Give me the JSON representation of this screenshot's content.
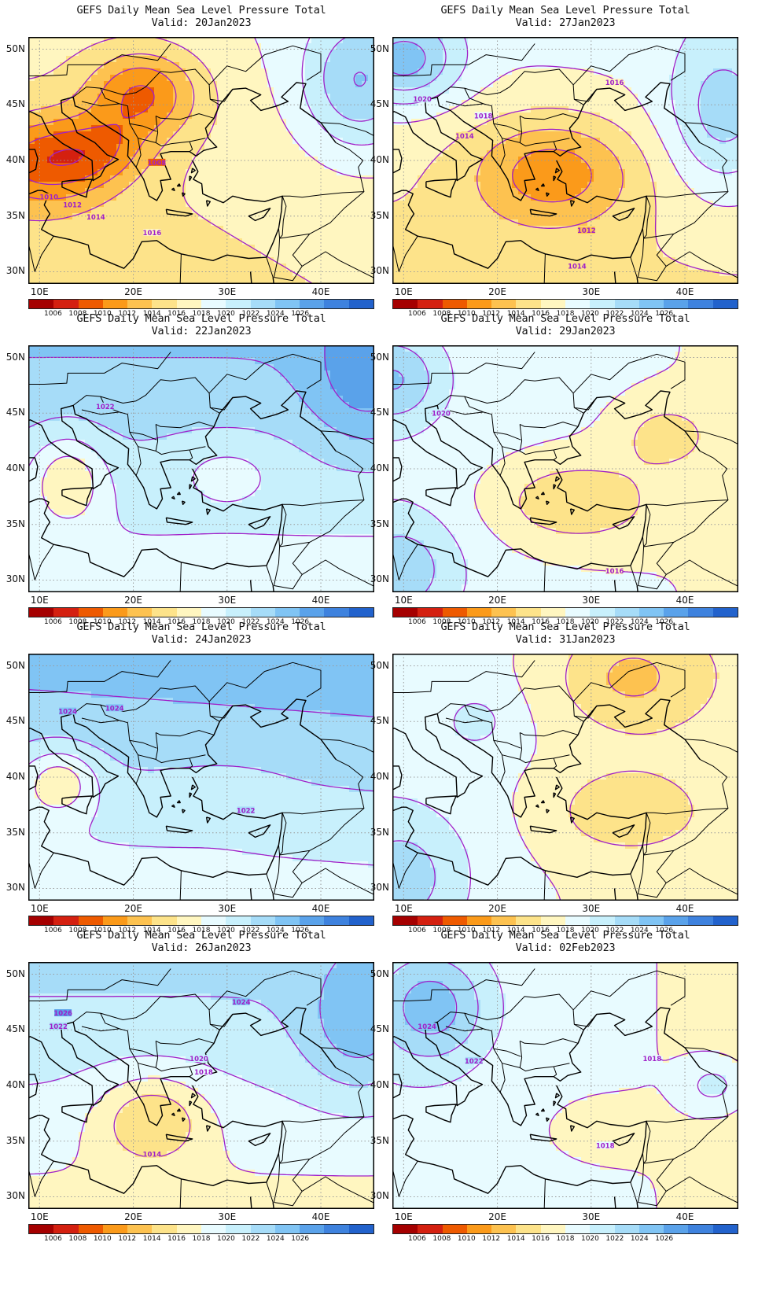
{
  "colors": {
    "scale": [
      "#a50000",
      "#d42010",
      "#ee5a00",
      "#fb9a1a",
      "#fdc250",
      "#fde38a",
      "#fff6c0",
      "#e8fbff",
      "#c8f0fc",
      "#a6dcf8",
      "#80c4f4",
      "#5aa2ea",
      "#3e82de",
      "#2262cc"
    ],
    "contour": "#a020c8",
    "coast": "#000000",
    "gridline": "#9a9a9a"
  },
  "axes": {
    "lat_labels": [
      "50N",
      "45N",
      "40N",
      "35N",
      "30N"
    ],
    "lat_values": [
      50,
      45,
      40,
      35,
      30
    ],
    "lon_labels": [
      "10E",
      "20E",
      "30E",
      "40E"
    ],
    "lon_values": [
      10,
      20,
      30,
      40
    ],
    "lon_range": [
      8.8,
      45.7
    ],
    "lat_range": [
      28.9,
      51.1
    ]
  },
  "colorbar": {
    "ticks": [
      "1006",
      "1008",
      "1010",
      "1012",
      "1014",
      "1016",
      "1018",
      "1020",
      "1022",
      "1024",
      "1026"
    ]
  },
  "panels": [
    {
      "title": "GEFS Daily Mean Sea Level Pressure Total",
      "valid": "Valid: 20Jan2023",
      "field": {
        "base": 1016.5,
        "gx": 0.05,
        "gy": 0.1,
        "bumps": [
          [
            21,
            46,
            -7,
            6,
            4
          ],
          [
            11,
            40,
            -7,
            7,
            4
          ],
          [
            17,
            41,
            -3,
            5,
            3
          ],
          [
            44,
            47,
            6,
            6,
            6
          ]
        ]
      },
      "labels": [
        {
          "t": "1008",
          "lon": 22.5,
          "lat": 39.8
        },
        {
          "t": "1010",
          "lon": 11,
          "lat": 36.7
        },
        {
          "t": "1012",
          "lon": 13.5,
          "lat": 36
        },
        {
          "t": "1014",
          "lon": 16,
          "lat": 34.9
        },
        {
          "t": "1016",
          "lon": 22,
          "lat": 33.5
        }
      ]
    },
    {
      "title": "GEFS Daily Mean Sea Level Pressure Total",
      "valid": "Valid: 27Jan2023",
      "field": {
        "base": 1017,
        "gx": 0.02,
        "gy": 0.14,
        "bumps": [
          [
            26,
            39,
            -6,
            9,
            5
          ],
          [
            10,
            49,
            7,
            6,
            4
          ],
          [
            44,
            44,
            5,
            6,
            7
          ]
        ]
      },
      "labels": [
        {
          "t": "1016",
          "lon": 32.5,
          "lat": 47
        },
        {
          "t": "1020",
          "lon": 12,
          "lat": 45.5
        },
        {
          "t": "1018",
          "lon": 18.5,
          "lat": 44
        },
        {
          "t": "1014",
          "lon": 16.5,
          "lat": 42.2
        },
        {
          "t": "1012",
          "lon": 29.5,
          "lat": 33.7
        },
        {
          "t": "1014",
          "lon": 28.5,
          "lat": 30.5
        }
      ]
    },
    {
      "title": "GEFS Daily Mean Sea Level Pressure Total",
      "valid": "Valid: 22Jan2023",
      "field": {
        "base": 1021.5,
        "gx": 0.0,
        "gy": 0.25,
        "bumps": [
          [
            13,
            39,
            -5,
            4,
            4
          ],
          [
            30,
            40,
            -2,
            6,
            3
          ],
          [
            45,
            48,
            4,
            6,
            6
          ]
        ]
      },
      "labels": [
        {
          "t": "1022",
          "lon": 17,
          "lat": 45.6
        }
      ]
    },
    {
      "title": "GEFS Daily Mean Sea Level Pressure Total",
      "valid": "Valid: 29Jan2023",
      "field": {
        "base": 1018.5,
        "gx": -0.04,
        "gy": 0.0,
        "bumps": [
          [
            28,
            37,
            -4,
            9,
            4
          ],
          [
            38,
            43,
            -3,
            5,
            3
          ],
          [
            9,
            48,
            5,
            5,
            4
          ],
          [
            10,
            31,
            4,
            6,
            5
          ]
        ]
      },
      "labels": [
        {
          "t": "1020",
          "lon": 14,
          "lat": 45
        },
        {
          "t": "1016",
          "lon": 32.5,
          "lat": 30.8
        }
      ]
    },
    {
      "title": "GEFS Daily Mean Sea Level Pressure Total",
      "valid": "Valid: 24Jan2023",
      "field": {
        "base": 1022,
        "gx": 0.02,
        "gy": 0.3,
        "bumps": [
          [
            12,
            39.5,
            -5,
            4,
            3
          ],
          [
            30,
            38,
            -1,
            6,
            3
          ]
        ]
      },
      "labels": [
        {
          "t": "1024",
          "lon": 13,
          "lat": 45.9
        },
        {
          "t": "1024",
          "lon": 18,
          "lat": 46.2
        },
        {
          "t": "1022",
          "lon": 32,
          "lat": 37
        }
      ]
    },
    {
      "title": "GEFS Daily Mean Sea Level Pressure Total",
      "valid": "Valid: 31Jan2023",
      "field": {
        "base": 1018,
        "gx": -0.06,
        "gy": 0.0,
        "bumps": [
          [
            34,
            49,
            -4,
            8,
            5
          ],
          [
            33,
            37,
            -3,
            8,
            4
          ],
          [
            18,
            45,
            2,
            4,
            3
          ],
          [
            10,
            31,
            4,
            7,
            6
          ]
        ]
      },
      "labels": []
    },
    {
      "title": "GEFS Daily Mean Sea Level Pressure Total",
      "valid": "Valid: 26Jan2023",
      "field": {
        "base": 1020,
        "gx": 0.0,
        "gy": 0.25,
        "bumps": [
          [
            22,
            37,
            -5,
            6,
            4
          ],
          [
            44,
            45,
            4,
            6,
            6
          ]
        ]
      },
      "labels": [
        {
          "t": "1024",
          "lon": 31.5,
          "lat": 47.5
        },
        {
          "t": "1026",
          "lon": 12.5,
          "lat": 46.5
        },
        {
          "t": "1022",
          "lon": 12,
          "lat": 45.3
        },
        {
          "t": "1020",
          "lon": 27,
          "lat": 42.4
        },
        {
          "t": "1018",
          "lon": 27.5,
          "lat": 41.2
        },
        {
          "t": "1014",
          "lon": 22,
          "lat": 33.8
        }
      ]
    },
    {
      "title": "GEFS Daily Mean Sea Level Pressure Total",
      "valid": "Valid: 02Feb2023",
      "field": {
        "base": 1018.5,
        "gx": -0.05,
        "gy": 0.0,
        "bumps": [
          [
            13,
            47,
            6,
            6,
            5
          ],
          [
            43,
            40,
            3,
            3,
            2
          ],
          [
            30,
            36,
            -1,
            6,
            3
          ]
        ]
      },
      "labels": [
        {
          "t": "1024",
          "lon": 12.5,
          "lat": 45.3
        },
        {
          "t": "1022",
          "lon": 17.5,
          "lat": 42.2
        },
        {
          "t": "1018",
          "lon": 36.5,
          "lat": 42.4
        },
        {
          "t": "1018",
          "lon": 31.5,
          "lat": 34.6
        }
      ]
    }
  ]
}
